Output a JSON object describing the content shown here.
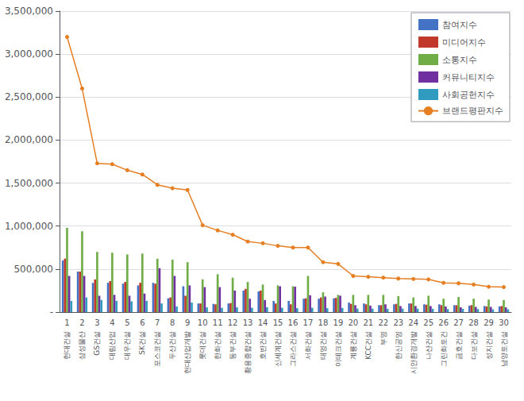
{
  "chart_data": {
    "type": "bar",
    "categories": [
      "1",
      "2",
      "3",
      "4",
      "5",
      "6",
      "7",
      "8",
      "9",
      "10",
      "11",
      "12",
      "13",
      "14",
      "15",
      "16",
      "17",
      "18",
      "19",
      "20",
      "21",
      "22",
      "23",
      "24",
      "25",
      "26",
      "27",
      "28",
      "29",
      "30"
    ],
    "annotations": [
      "현대건설",
      "삼성물산",
      "GS건설",
      "대림산업",
      "대우건설",
      "SK건설",
      "포스코건설",
      "두산건설",
      "현대산업개발",
      "롯데건설",
      "한화건설",
      "동부건설",
      "황용종합건설",
      "호반건설",
      "신세계건설",
      "그라스건설",
      "서화건설",
      "태영건설",
      "이테크건설",
      "계룡건설",
      "KCC건설",
      "부영",
      "한신공영",
      "시안환경개발",
      "나산건설",
      "그린화토건",
      "금호건설",
      "다보건설",
      "성지건설",
      "남양토건설"
    ],
    "series": [
      {
        "name": "참여지수",
        "color": "#4472c4",
        "values": [
          600000,
          470000,
          340000,
          340000,
          330000,
          310000,
          340000,
          160000,
          300000,
          100000,
          95000,
          100000,
          250000,
          240000,
          130000,
          130000,
          155000,
          155000,
          160000,
          110000,
          100000,
          80000,
          90000,
          100000,
          90000,
          90000,
          80000,
          75000,
          70000,
          65000
        ]
      },
      {
        "name": "미디어지수",
        "color": "#c0392b",
        "values": [
          620000,
          470000,
          380000,
          360000,
          350000,
          340000,
          330000,
          170000,
          190000,
          100000,
          90000,
          105000,
          270000,
          250000,
          100000,
          90000,
          160000,
          170000,
          165000,
          95000,
          90000,
          80000,
          95000,
          100000,
          85000,
          80000,
          80000,
          80000,
          65000,
          70000
        ]
      },
      {
        "name": "소통지수",
        "color": "#70ad47",
        "values": [
          980000,
          940000,
          700000,
          690000,
          670000,
          680000,
          620000,
          610000,
          580000,
          380000,
          440000,
          400000,
          350000,
          320000,
          310000,
          300000,
          420000,
          230000,
          200000,
          200000,
          200000,
          200000,
          185000,
          170000,
          190000,
          155000,
          175000,
          155000,
          145000,
          140000
        ]
      },
      {
        "name": "커뮤니티지수",
        "color": "#7030a0",
        "values": [
          420000,
          420000,
          190000,
          200000,
          190000,
          215000,
          510000,
          420000,
          310000,
          290000,
          290000,
          250000,
          155000,
          140000,
          300000,
          295000,
          195000,
          180000,
          190000,
          80000,
          75000,
          90000,
          70000,
          70000,
          70000,
          65000,
          55000,
          60000,
          60000,
          55000
        ]
      },
      {
        "name": "사회공헌지수",
        "color": "#2e9bbf",
        "values": [
          130000,
          170000,
          140000,
          130000,
          125000,
          130000,
          100000,
          65000,
          110000,
          55000,
          50000,
          55000,
          50000,
          55000,
          50000,
          45000,
          50000,
          45000,
          48000,
          40000,
          40000,
          38000,
          40000,
          40000,
          38000,
          35000,
          38000,
          35000,
          32000,
          32000
        ]
      },
      {
        "name": "브랜드평판지수",
        "type": "line",
        "color": "#e67e22",
        "marker": "circle",
        "values": [
          3200000,
          2600000,
          1730000,
          1720000,
          1650000,
          1600000,
          1480000,
          1440000,
          1420000,
          1010000,
          950000,
          900000,
          820000,
          800000,
          770000,
          750000,
          750000,
          580000,
          560000,
          420000,
          410000,
          400000,
          390000,
          385000,
          380000,
          340000,
          335000,
          320000,
          295000,
          290000
        ]
      }
    ],
    "ylim": [
      0,
      3500000
    ],
    "yticks": [
      {
        "value": 0,
        "label": "-"
      },
      {
        "value": 500000,
        "label": "500,000"
      },
      {
        "value": 1000000,
        "label": "1,000,000"
      },
      {
        "value": 1500000,
        "label": "1,500,000"
      },
      {
        "value": 2000000,
        "label": "2,000,000"
      },
      {
        "value": 2500000,
        "label": "2,500,000"
      },
      {
        "value": 3000000,
        "label": "3,000,000"
      },
      {
        "value": 3500000,
        "label": "3,500,000"
      }
    ],
    "grid": true,
    "legend": "upper right"
  }
}
